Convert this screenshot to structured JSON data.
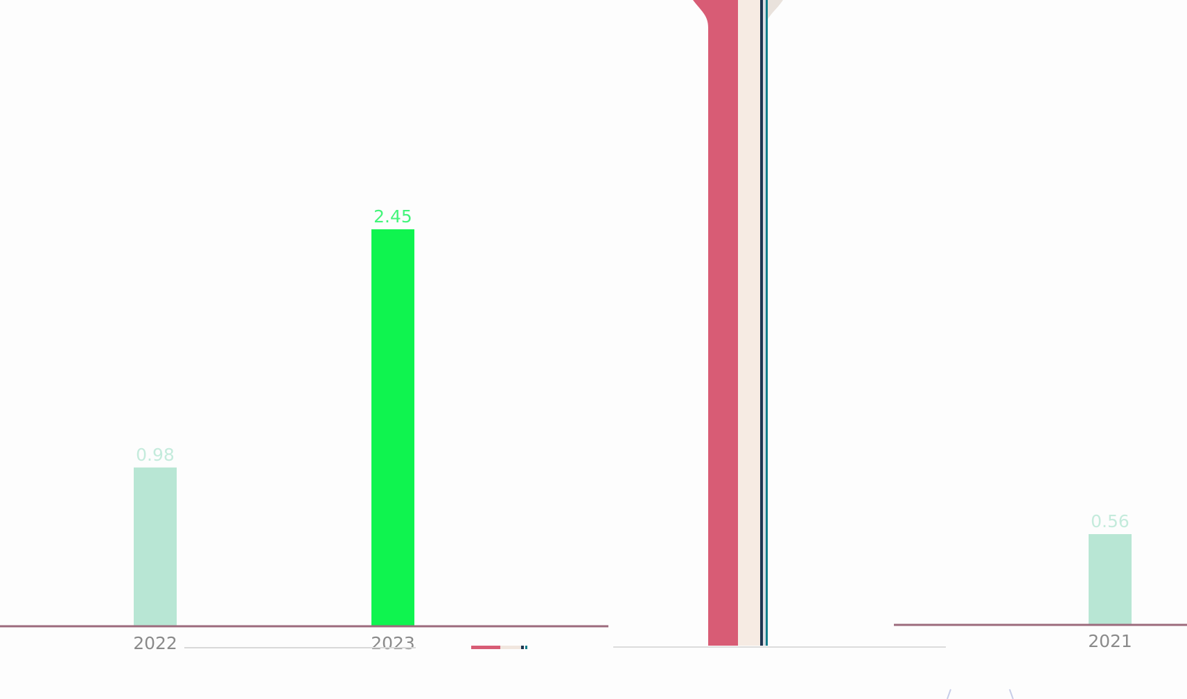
{
  "colors": {
    "background": "#fdfdfd",
    "bar_muted": "#b8e6d4",
    "bar_highlight": "#0ff44f",
    "label_muted": "#c4ebdc",
    "label_highlight": "#43f57a",
    "baseline": "#9c6a7c",
    "stripe_red": "#d85c75",
    "stripe_cream": "#f6ebe3",
    "stripe_navy": "#1e3550",
    "stripe_teal": "#0f7d8a",
    "faint_gray": "#cfcfcf"
  },
  "chart_data": [
    {
      "type": "bar",
      "categories": [
        "2022",
        "2023"
      ],
      "values": [
        0.98,
        2.45
      ],
      "highlight_index": 1,
      "title": "",
      "xlabel": "",
      "ylabel": "",
      "ylim": [
        0,
        3.07
      ],
      "grid": false,
      "legend": "none"
    },
    {
      "type": "bar",
      "categories": [
        "2021"
      ],
      "values": [
        0.56
      ],
      "highlight_index": -1,
      "title": "",
      "xlabel": "",
      "ylabel": "",
      "ylim": [
        0,
        3.07
      ],
      "grid": false,
      "legend": "none"
    }
  ]
}
